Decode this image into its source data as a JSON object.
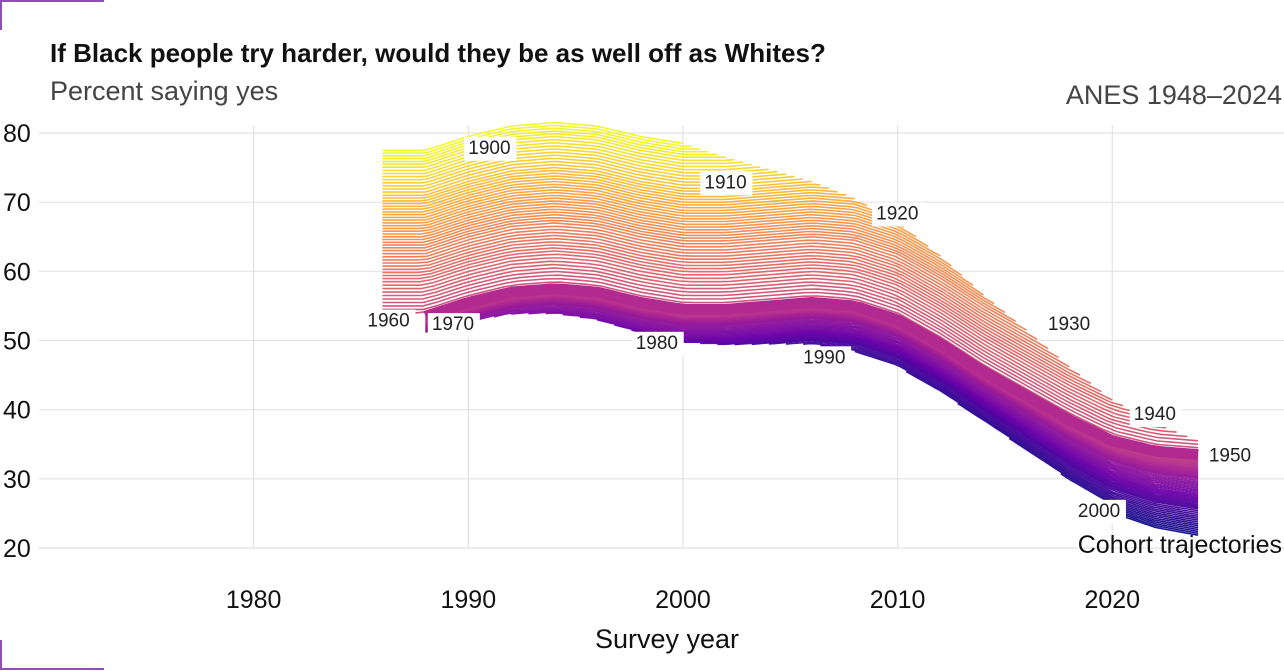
{
  "header": {
    "title": "If Black people try harder, would they be as well off as Whites?",
    "subtitle": "Percent saying yes",
    "source": "ANES 1948–2024"
  },
  "chart_data": {
    "type": "line",
    "title": "If Black people try harder, would they be as well off as Whites?",
    "subtitle": "Percent saying yes",
    "xlabel": "Survey year",
    "ylabel": "",
    "xlim": [
      1970,
      2028
    ],
    "ylim": [
      20,
      80
    ],
    "x_ticks": [
      1980,
      1990,
      2000,
      2010,
      2020
    ],
    "y_ticks": [
      20,
      30,
      40,
      50,
      60,
      70,
      80
    ],
    "grid": true,
    "legend_text": "Cohort trajectories",
    "colormap": [
      "#f0f921",
      "#fca636",
      "#e16462",
      "#b12a90",
      "#6a00a8",
      "#0d0887"
    ],
    "highlight_cohort": 1950,
    "cohort_range": [
      1895,
      2004
    ],
    "cohorts": [
      {
        "cohort": 1900,
        "start": 1986,
        "end": 2000,
        "start_value": 75.5,
        "label_year": 1990,
        "label_value": 77.0
      },
      {
        "cohort": 1910,
        "start": 1986,
        "end": 2004,
        "start_value": 71.0,
        "label_year": 2001,
        "label_value": 72.0
      },
      {
        "cohort": 1920,
        "start": 1986,
        "end": 2008,
        "start_value": 67.0,
        "label_year": 2009,
        "label_value": 67.5
      },
      {
        "cohort": 1930,
        "start": 1986,
        "end": 2016,
        "start_value": 63.0,
        "label_year": 2017,
        "label_value": 51.5
      },
      {
        "cohort": 1940,
        "start": 1986,
        "end": 2020,
        "start_value": 59.0,
        "label_year": 2021,
        "label_value": 38.5
      },
      {
        "cohort": 1950,
        "start": 1988,
        "end": 2024,
        "start_value": 53.0,
        "label_year": 2024.5,
        "label_value": 32.5
      },
      {
        "cohort": 1960,
        "start": 1988,
        "end": 2024,
        "start_value": 52.0,
        "label_year": 1985.3,
        "label_value": 52.0
      },
      {
        "cohort": 1970,
        "start": 1988,
        "end": 2024,
        "start_value": 51.8,
        "label_year": 1988.3,
        "label_value": 51.5
      },
      {
        "cohort": 1980,
        "start": 1996,
        "end": 2024,
        "start_value": 51.5,
        "label_year": 1997.8,
        "label_value": 48.8
      },
      {
        "cohort": 1990,
        "start": 2004,
        "end": 2024,
        "start_value": 48.5,
        "label_year": 2005.6,
        "label_value": 46.7
      },
      {
        "cohort": 2000,
        "start": 2020,
        "end": 2024,
        "start_value": 25.5,
        "label_year": 2018.4,
        "label_value": 24.5
      }
    ],
    "series": [
      {
        "name": "1950",
        "x": [
          1988,
          1990,
          1992,
          1994,
          1996,
          1998,
          2000,
          2002,
          2004,
          2006,
          2008,
          2010,
          2012,
          2014,
          2016,
          2018,
          2020,
          2022,
          2024
        ],
        "values": [
          53.5,
          55.5,
          57.0,
          57.5,
          57.0,
          55.5,
          54.5,
          54.5,
          55.0,
          55.5,
          55.0,
          53.0,
          49.5,
          45.5,
          42.0,
          38.5,
          35.5,
          34.0,
          33.5
        ]
      }
    ]
  }
}
